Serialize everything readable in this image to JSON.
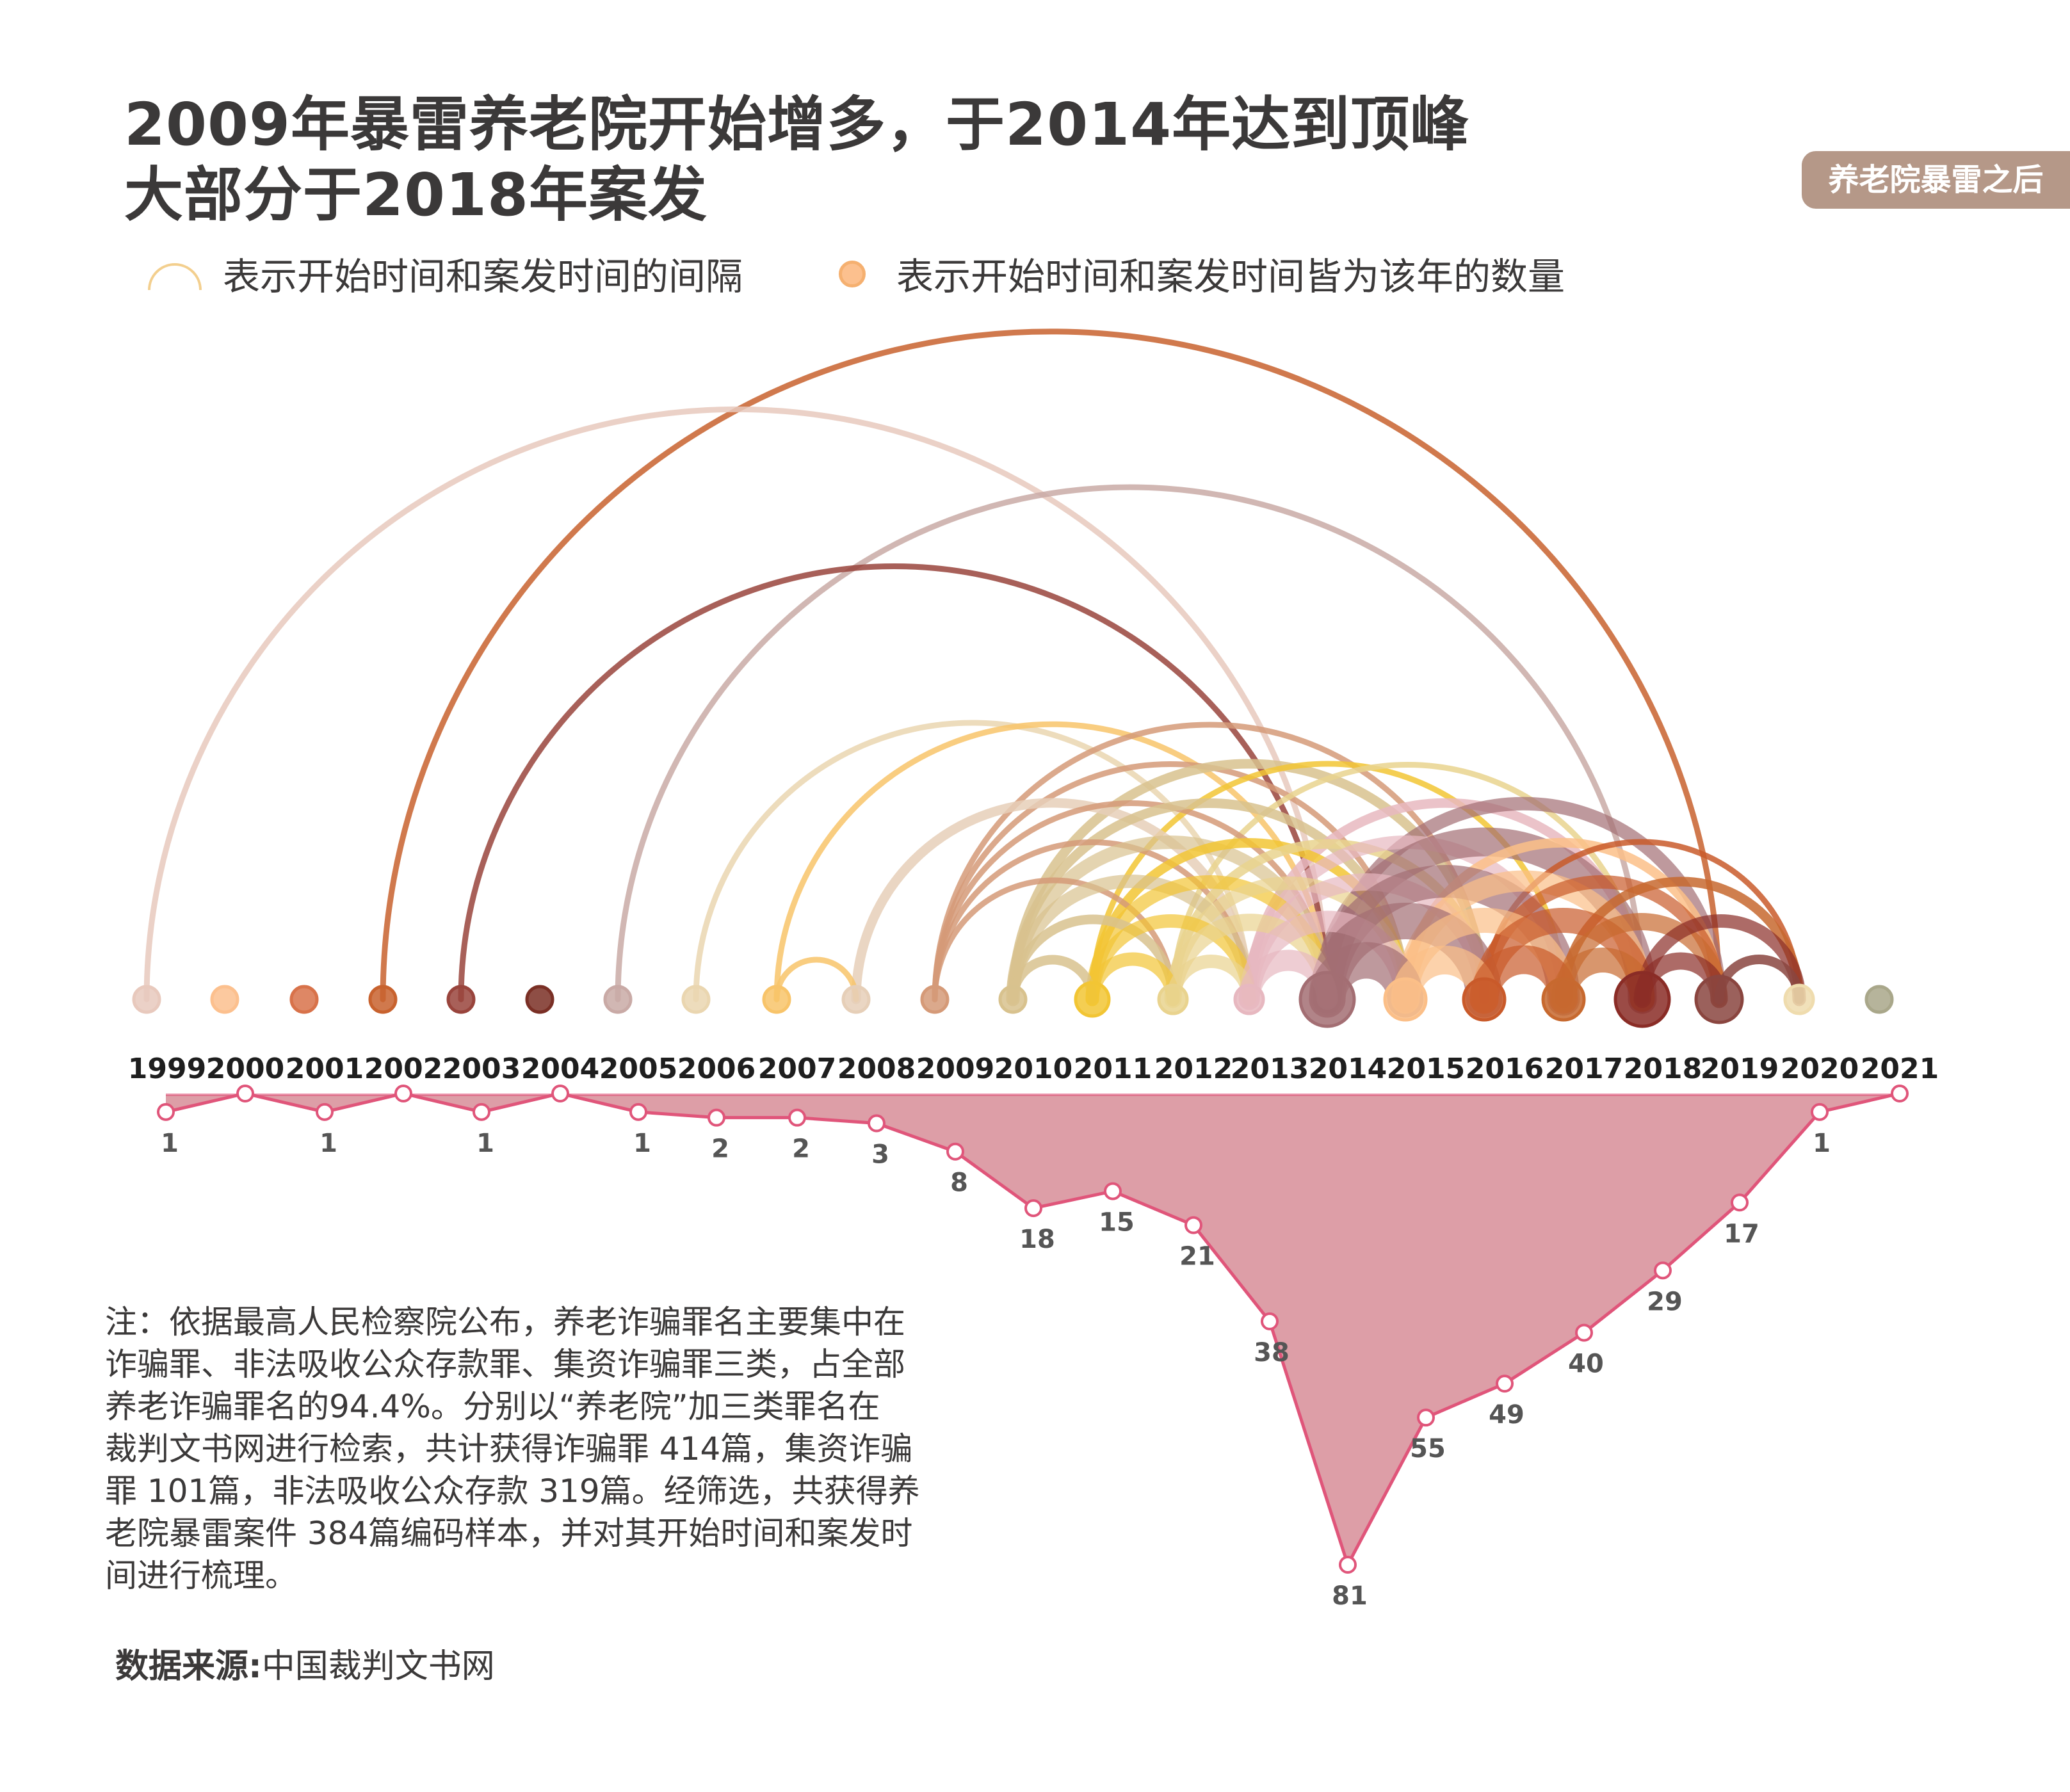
{
  "title": {
    "line1": "2009年暴雷养老院开始增多，于2014年达到顶峰",
    "line2": "大部分于2018年案发"
  },
  "badge": "养老院暴雷之后",
  "legend": {
    "arc_label": "表示开始时间和案发时间的间隔",
    "dot_label": "表示开始时间和案发时间皆为该年的数量"
  },
  "note": {
    "lines": [
      "注：依据最高人民检察院公布，养老诈骗罪名主要集中在",
      "诈骗罪、非法吸收公众存款罪、集资诈骗罪三类，占全部",
      "养老诈骗罪名的94.4%。分别以“养老院”加三类罪名在",
      "裁判文书网进行检索，共计获得诈骗罪 414篇，集资诈骗",
      "罪 101篇，非法吸收公众存款 319篇。经筛选，共获得养",
      "老院暴雷案件 384篇编码样本，并对其开始时间和案发时",
      "间进行梳理。"
    ]
  },
  "source": {
    "label": "数据来源:",
    "value": "中国裁判文书网"
  },
  "chart_data": {
    "type": "area",
    "years": [
      "1999",
      "2000",
      "2001",
      "2002",
      "2003",
      "2004",
      "2005",
      "2006",
      "2007",
      "2008",
      "2009",
      "2010",
      "2011",
      "2012",
      "2013",
      "2014",
      "2015",
      "2016",
      "2017",
      "2018",
      "2019",
      "2020",
      "2021"
    ],
    "start_counts": [
      {
        "year": "1999",
        "value": 1
      },
      {
        "year": "2000",
        "value": null
      },
      {
        "year": "2001",
        "value": 1
      },
      {
        "year": "2002",
        "value": null
      },
      {
        "year": "2003",
        "value": 1
      },
      {
        "year": "2004",
        "value": null
      },
      {
        "year": "2005",
        "value": 1
      },
      {
        "year": "2006",
        "value": 2
      },
      {
        "year": "2007",
        "value": 2
      },
      {
        "year": "2008",
        "value": 3
      },
      {
        "year": "2009",
        "value": 8
      },
      {
        "year": "2010",
        "value": 18
      },
      {
        "year": "2011",
        "value": 15
      },
      {
        "year": "2012",
        "value": 21
      },
      {
        "year": "2013",
        "value": 38
      },
      {
        "year": "2014",
        "value": 81
      },
      {
        "year": "2015",
        "value": 55
      },
      {
        "year": "2016",
        "value": 49
      },
      {
        "year": "2017",
        "value": 40
      },
      {
        "year": "2018",
        "value": 29
      },
      {
        "year": "2019",
        "value": 17
      },
      {
        "year": "2020",
        "value": 1
      },
      {
        "year": "2021",
        "value": null
      }
    ],
    "year_colors": [
      "#e8c9bd",
      "#fcc08e",
      "#d8724a",
      "#c8622e",
      "#99443c",
      "#7a2f25",
      "#c9aaa6",
      "#ead6b0",
      "#f8c46a",
      "#e6cfb8",
      "#d59a78",
      "#d8c28e",
      "#f2c534",
      "#e9d38e",
      "#e7b8c0",
      "#a36e73",
      "#fbbf88",
      "#c95a2a",
      "#c7692f",
      "#8a2c26",
      "#8a453f",
      "#efdcae",
      "#a9a78a"
    ],
    "dot_sizes": [
      1,
      1,
      1,
      1,
      1,
      1,
      1,
      1,
      1,
      1,
      1,
      1,
      1.3,
      1.1,
      1.1,
      2.1,
      1.6,
      1.6,
      1.6,
      2.1,
      1.8,
      1.1,
      1
    ],
    "arcs": [
      {
        "from": "1999",
        "to": "2014",
        "w": 1
      },
      {
        "from": "2002",
        "to": "2019",
        "w": 1
      },
      {
        "from": "2003",
        "to": "2014",
        "w": 1
      },
      {
        "from": "2005",
        "to": "2018",
        "w": 1
      },
      {
        "from": "2006",
        "to": "2013",
        "w": 1
      },
      {
        "from": "2007",
        "to": "2008",
        "w": 1
      },
      {
        "from": "2007",
        "to": "2014",
        "w": 1
      },
      {
        "from": "2008",
        "to": "2013",
        "w": 2
      },
      {
        "from": "2009",
        "to": "2012",
        "w": 1
      },
      {
        "from": "2009",
        "to": "2013",
        "w": 1
      },
      {
        "from": "2009",
        "to": "2014",
        "w": 1
      },
      {
        "from": "2009",
        "to": "2015",
        "w": 1
      },
      {
        "from": "2009",
        "to": "2016",
        "w": 1
      },
      {
        "from": "2010",
        "to": "2011",
        "w": 2
      },
      {
        "from": "2010",
        "to": "2012",
        "w": 2
      },
      {
        "from": "2010",
        "to": "2013",
        "w": 3
      },
      {
        "from": "2010",
        "to": "2014",
        "w": 3
      },
      {
        "from": "2010",
        "to": "2015",
        "w": 2
      },
      {
        "from": "2010",
        "to": "2016",
        "w": 2
      },
      {
        "from": "2011",
        "to": "2012",
        "w": 3
      },
      {
        "from": "2011",
        "to": "2013",
        "w": 3
      },
      {
        "from": "2011",
        "to": "2014",
        "w": 3
      },
      {
        "from": "2011",
        "to": "2015",
        "w": 2
      },
      {
        "from": "2011",
        "to": "2017",
        "w": 1
      },
      {
        "from": "2012",
        "to": "2013",
        "w": 3
      },
      {
        "from": "2012",
        "to": "2014",
        "w": 4
      },
      {
        "from": "2012",
        "to": "2015",
        "w": 3
      },
      {
        "from": "2012",
        "to": "2016",
        "w": 2
      },
      {
        "from": "2012",
        "to": "2018",
        "w": 1
      },
      {
        "from": "2013",
        "to": "2014",
        "w": 5
      },
      {
        "from": "2013",
        "to": "2015",
        "w": 5
      },
      {
        "from": "2013",
        "to": "2016",
        "w": 4
      },
      {
        "from": "2013",
        "to": "2017",
        "w": 3
      },
      {
        "from": "2013",
        "to": "2018",
        "w": 2
      },
      {
        "from": "2014",
        "to": "2015",
        "w": 9
      },
      {
        "from": "2014",
        "to": "2016",
        "w": 9
      },
      {
        "from": "2014",
        "to": "2017",
        "w": 8
      },
      {
        "from": "2014",
        "to": "2018",
        "w": 7
      },
      {
        "from": "2014",
        "to": "2019",
        "w": 3
      },
      {
        "from": "2015",
        "to": "2016",
        "w": 7
      },
      {
        "from": "2015",
        "to": "2017",
        "w": 6
      },
      {
        "from": "2015",
        "to": "2018",
        "w": 5
      },
      {
        "from": "2015",
        "to": "2019",
        "w": 2
      },
      {
        "from": "2016",
        "to": "2017",
        "w": 7
      },
      {
        "from": "2016",
        "to": "2018",
        "w": 6
      },
      {
        "from": "2016",
        "to": "2019",
        "w": 3
      },
      {
        "from": "2016",
        "to": "2020",
        "w": 1
      },
      {
        "from": "2017",
        "to": "2018",
        "w": 6
      },
      {
        "from": "2017",
        "to": "2019",
        "w": 4
      },
      {
        "from": "2017",
        "to": "2020",
        "w": 2
      },
      {
        "from": "2018",
        "to": "2019",
        "w": 4
      },
      {
        "from": "2018",
        "to": "2020",
        "w": 3
      },
      {
        "from": "2019",
        "to": "2020",
        "w": 2
      }
    ]
  }
}
